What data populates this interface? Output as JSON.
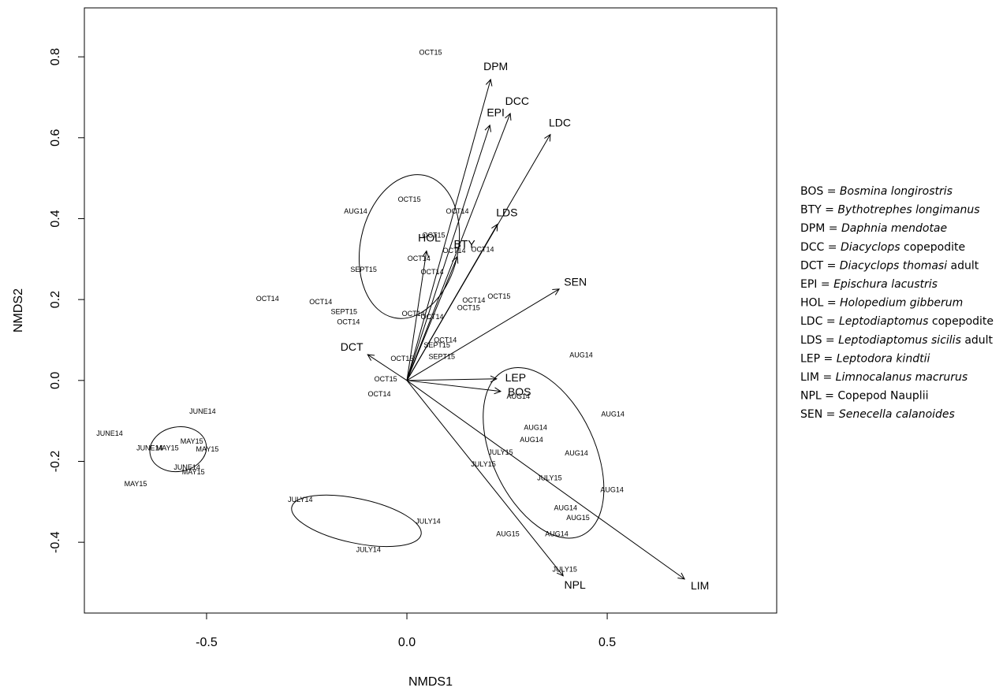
{
  "chart_data": {
    "type": "scatter",
    "xlabel": "NMDS1",
    "ylabel": "NMDS2",
    "xlim": [
      -0.805,
      0.923
    ],
    "ylim": [
      -0.575,
      0.921
    ],
    "xticks": [
      -0.5,
      {
        "value": 0,
        "label": "0.0"
      },
      0.5
    ],
    "yticks": [
      -0.4,
      -0.2,
      {
        "value": 0,
        "label": "0.0"
      },
      0.2,
      0.4,
      0.6,
      0.8
    ],
    "points": [
      {
        "label": "OCT15",
        "x": 0.059,
        "y": 0.81
      },
      {
        "label": "OCT15",
        "x": 0.006,
        "y": 0.446
      },
      {
        "label": "AUG14",
        "x": -0.128,
        "y": 0.417
      },
      {
        "label": "OCT14",
        "x": 0.126,
        "y": 0.417
      },
      {
        "label": "OCT15",
        "x": 0.067,
        "y": 0.358
      },
      {
        "label": "OCT14",
        "x": 0.03,
        "y": 0.3
      },
      {
        "label": "OCT14",
        "x": 0.118,
        "y": 0.32
      },
      {
        "label": "OCT14",
        "x": 0.189,
        "y": 0.323
      },
      {
        "label": "SEPT15",
        "x": -0.108,
        "y": 0.273
      },
      {
        "label": "OCT14",
        "x": 0.063,
        "y": 0.267
      },
      {
        "label": "OCT14",
        "x": -0.348,
        "y": 0.201
      },
      {
        "label": "OCT14",
        "x": -0.215,
        "y": 0.193
      },
      {
        "label": "SEPT15",
        "x": -0.157,
        "y": 0.169
      },
      {
        "label": "OCT14",
        "x": -0.146,
        "y": 0.144
      },
      {
        "label": "OCT15",
        "x": 0.23,
        "y": 0.207
      },
      {
        "label": "OCT14",
        "x": 0.167,
        "y": 0.197
      },
      {
        "label": "OCT15",
        "x": 0.154,
        "y": 0.179
      },
      {
        "label": "OCT14",
        "x": 0.016,
        "y": 0.164
      },
      {
        "label": "OCT14",
        "x": 0.063,
        "y": 0.156
      },
      {
        "label": "OCT14",
        "x": 0.096,
        "y": 0.099
      },
      {
        "label": "SEPT15",
        "x": 0.075,
        "y": 0.086
      },
      {
        "label": "SEPT15",
        "x": 0.087,
        "y": 0.058
      },
      {
        "label": "OCT15",
        "x": -0.012,
        "y": 0.053
      },
      {
        "label": "OCT15",
        "x": -0.053,
        "y": 0.002
      },
      {
        "label": "OCT14",
        "x": -0.069,
        "y": -0.035
      },
      {
        "label": "AUG14",
        "x": 0.435,
        "y": 0.062
      },
      {
        "label": "AUG14",
        "x": 0.278,
        "y": -0.041
      },
      {
        "label": "AUG14",
        "x": 0.514,
        "y": -0.084
      },
      {
        "label": "JUNE14",
        "x": -0.51,
        "y": -0.078
      },
      {
        "label": "JUNE14",
        "x": -0.742,
        "y": -0.132
      },
      {
        "label": "JUNE14",
        "x": -0.642,
        "y": -0.168
      },
      {
        "label": "MAY15",
        "x": -0.598,
        "y": -0.168
      },
      {
        "label": "MAY15",
        "x": -0.537,
        "y": -0.152
      },
      {
        "label": "MAY15",
        "x": -0.498,
        "y": -0.171
      },
      {
        "label": "JUNE14",
        "x": -0.549,
        "y": -0.216
      },
      {
        "label": "MAY15",
        "x": -0.533,
        "y": -0.228
      },
      {
        "label": "MAY15",
        "x": -0.677,
        "y": -0.257
      },
      {
        "label": "AUG14",
        "x": 0.321,
        "y": -0.117
      },
      {
        "label": "AUG14",
        "x": 0.311,
        "y": -0.148
      },
      {
        "label": "AUG14",
        "x": 0.423,
        "y": -0.181
      },
      {
        "label": "JULY15",
        "x": 0.234,
        "y": -0.179
      },
      {
        "label": "JULY15",
        "x": 0.191,
        "y": -0.208
      },
      {
        "label": "JULY15",
        "x": 0.356,
        "y": -0.242
      },
      {
        "label": "AUG14",
        "x": 0.512,
        "y": -0.271
      },
      {
        "label": "AUG14",
        "x": 0.396,
        "y": -0.316
      },
      {
        "label": "AUG15",
        "x": 0.427,
        "y": -0.341
      },
      {
        "label": "AUG15",
        "x": 0.252,
        "y": -0.38
      },
      {
        "label": "AUG14",
        "x": 0.374,
        "y": -0.38
      },
      {
        "label": "JULY15",
        "x": 0.394,
        "y": -0.468
      },
      {
        "label": "JULY14",
        "x": -0.266,
        "y": -0.296
      },
      {
        "label": "JULY14",
        "x": 0.053,
        "y": -0.349
      },
      {
        "label": "JULY14",
        "x": -0.096,
        "y": -0.419
      }
    ],
    "vectors": [
      {
        "name": "DPM",
        "x": 0.209,
        "y": 0.744
      },
      {
        "name": "EPI",
        "x": 0.207,
        "y": 0.631
      },
      {
        "name": "DCC",
        "x": 0.258,
        "y": 0.66
      },
      {
        "name": "LDC",
        "x": 0.358,
        "y": 0.608
      },
      {
        "name": "LDS",
        "x": 0.226,
        "y": 0.386
      },
      {
        "name": "HOL",
        "x": 0.049,
        "y": 0.32
      },
      {
        "name": "BTY",
        "x": 0.126,
        "y": 0.306
      },
      {
        "name": "SEN",
        "x": 0.38,
        "y": 0.226
      },
      {
        "name": "DCT",
        "x": -0.098,
        "y": 0.064
      },
      {
        "name": "LEP",
        "x": 0.224,
        "y": 0.004
      },
      {
        "name": "BOS",
        "x": 0.234,
        "y": -0.027
      },
      {
        "name": "NPL",
        "x": 0.39,
        "y": -0.483
      },
      {
        "name": "LIM",
        "x": 0.693,
        "y": -0.491
      }
    ],
    "ellipses": [
      {
        "cx": 0.006,
        "cy": 0.331,
        "rx": 0.122,
        "ry": 0.18,
        "angle": 12
      },
      {
        "cx": 0.341,
        "cy": -0.179,
        "rx": 0.128,
        "ry": 0.225,
        "angle": -25
      },
      {
        "cx": -0.571,
        "cy": -0.17,
        "rx": 0.071,
        "ry": 0.055,
        "angle": -10
      },
      {
        "cx": -0.126,
        "cy": -0.347,
        "rx": 0.165,
        "ry": 0.055,
        "angle": 12
      }
    ],
    "legend": {
      "separator": "=",
      "entries": [
        {
          "code": "BOS",
          "italic": "Bosmina longirostris"
        },
        {
          "code": "BTY",
          "italic": "Bythotrephes longimanus"
        },
        {
          "code": "DPM",
          "italic": "Daphnia mendotae"
        },
        {
          "code": "DCC",
          "italic": "Diacyclops",
          "plain": "copepodite"
        },
        {
          "code": "DCT",
          "italic": "Diacyclops thomasi",
          "plain": "adult"
        },
        {
          "code": "EPI",
          "italic": "Epischura lacustris"
        },
        {
          "code": "HOL",
          "italic": "Holopedium gibberum"
        },
        {
          "code": "LDC",
          "italic": "Leptodiaptomus",
          "plain": "copepodite"
        },
        {
          "code": "LDS",
          "italic": "Leptodiaptomus sicilis",
          "plain": "adult"
        },
        {
          "code": "LEP",
          "italic": "Leptodora kindtii"
        },
        {
          "code": "LIM",
          "italic": "Limnocalanus macrurus"
        },
        {
          "code": "NPL",
          "plain": "Copepod Nauplii"
        },
        {
          "code": "SEN",
          "italic": "Senecella calanoides"
        }
      ]
    }
  }
}
